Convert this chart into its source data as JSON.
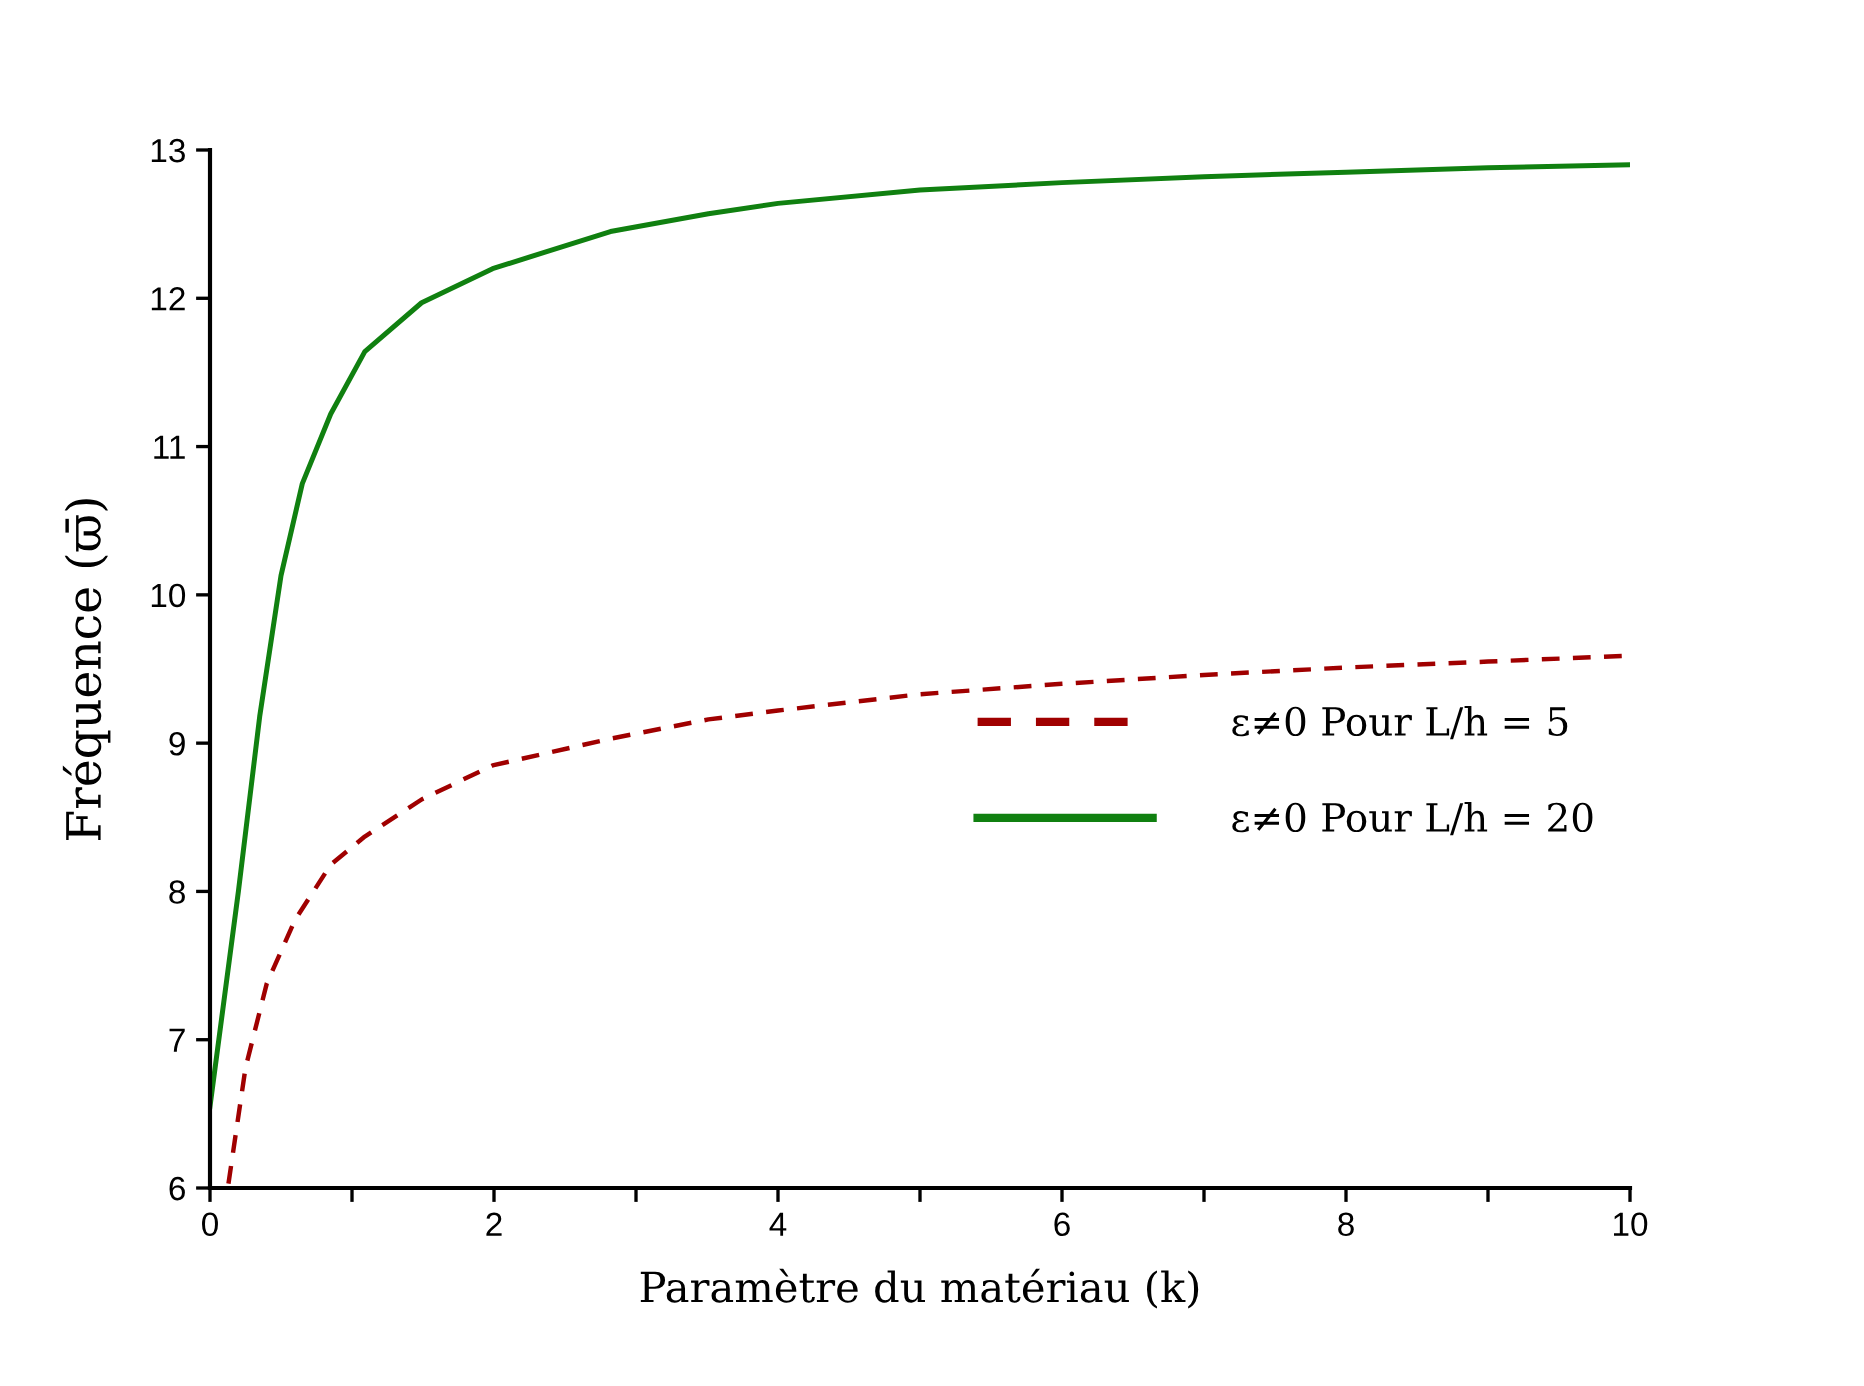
{
  "chart_data": {
    "type": "line",
    "xlabel": "Paramètre du matériau (k)",
    "ylabel": "Fréquence (ϖ̄)",
    "xlim": [
      0,
      10
    ],
    "ylim": [
      6,
      13
    ],
    "xticks": [
      0,
      {
        "value": 1,
        "label": null
      },
      2,
      {
        "value": 3,
        "label": null
      },
      4,
      {
        "value": 5,
        "label": null
      },
      6,
      {
        "value": 7,
        "label": null
      },
      8,
      {
        "value": 9,
        "label": null
      },
      10
    ],
    "yticks": [
      6,
      7,
      8,
      9,
      10,
      11,
      12,
      13
    ],
    "grid": false,
    "legend": "right",
    "marker": "none",
    "series": [
      {
        "name": "ε≠0 Pour L/h = 5",
        "color": "#a00000",
        "line_style": "dashed",
        "x": [
          0.13,
          0.25,
          0.4,
          0.6,
          0.85,
          1.09,
          1.49,
          1.99,
          2.82,
          3.51,
          4,
          5,
          6,
          7,
          8,
          9,
          10
        ],
        "values": [
          6.03,
          6.81,
          7.38,
          7.81,
          8.18,
          8.37,
          8.62,
          8.85,
          9.03,
          9.16,
          9.22,
          9.33,
          9.4,
          9.46,
          9.51,
          9.55,
          9.59
        ]
      },
      {
        "name": "ε≠0 Pour L/h = 20",
        "color": "#108010",
        "line_style": "solid",
        "x": [
          0,
          0.2,
          0.35,
          0.5,
          0.65,
          0.85,
          1.09,
          1.49,
          1.99,
          2.82,
          3.51,
          4,
          5,
          6,
          7,
          8,
          9,
          10
        ],
        "values": [
          6.55,
          8.0,
          9.18,
          10.13,
          10.75,
          11.22,
          11.64,
          11.97,
          12.2,
          12.45,
          12.57,
          12.64,
          12.73,
          12.78,
          12.82,
          12.85,
          12.88,
          12.9
        ]
      }
    ]
  }
}
